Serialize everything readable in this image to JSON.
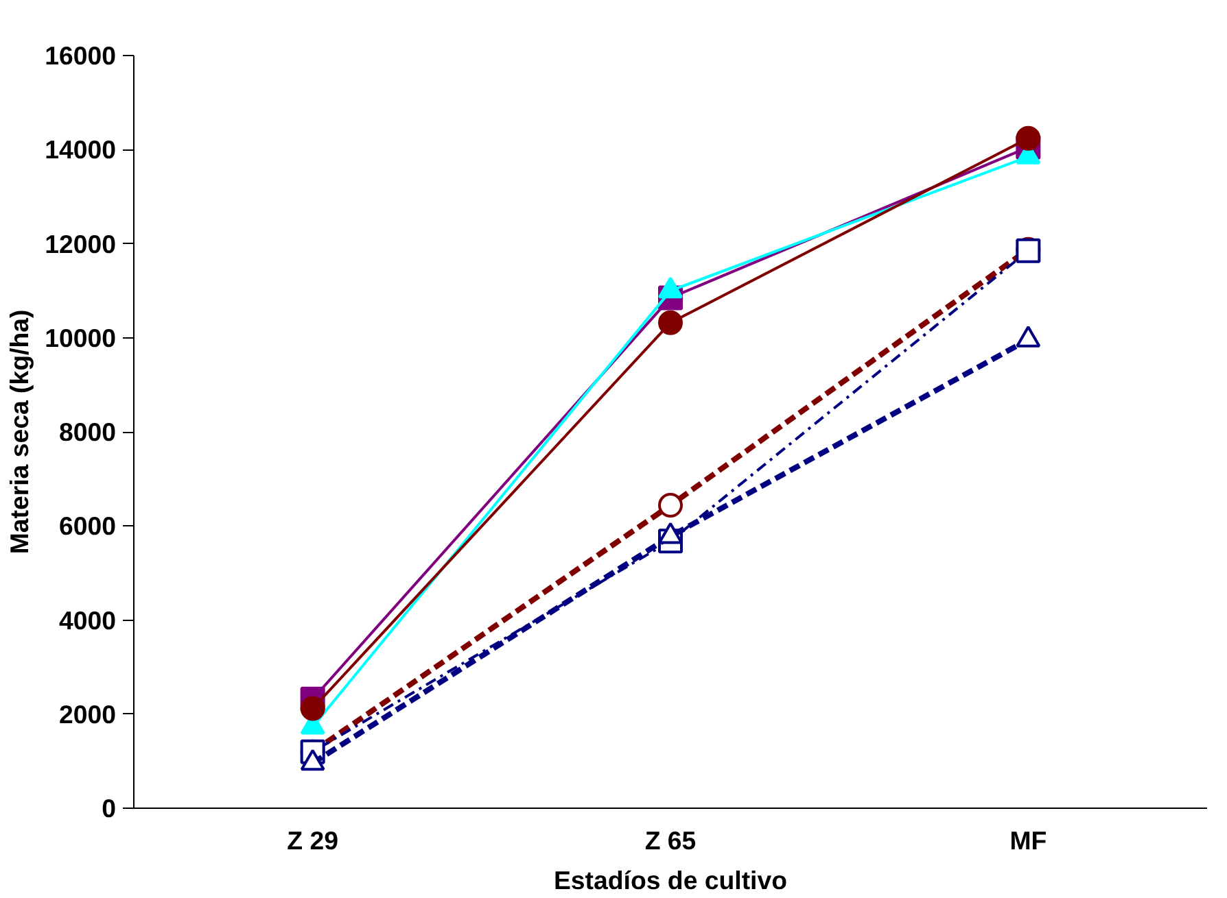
{
  "chart_data": {
    "type": "line",
    "xlabel": "Estadíos de cultivo",
    "ylabel": "Materia seca (kg/ha)",
    "categories": [
      "Z 29",
      "Z 65",
      "MF"
    ],
    "ylim": [
      0,
      16000
    ],
    "yticks": [
      0,
      2000,
      4000,
      6000,
      8000,
      10000,
      12000,
      14000,
      16000
    ],
    "series": [
      {
        "color": "#800080",
        "values": [
          2320,
          10850,
          14050
        ],
        "marker": "square",
        "line_style": "solid"
      },
      {
        "color": "#00ffff",
        "values": [
          1730,
          11000,
          13850
        ],
        "marker": "triangle",
        "line_style": "solid"
      },
      {
        "color": "#800000",
        "values": [
          2120,
          10320,
          14240
        ],
        "marker": "circle",
        "line_style": "solid"
      },
      {
        "color": "#800000",
        "values": [
          1200,
          6440,
          11880
        ],
        "marker": "circle",
        "line_style": "dashed"
      },
      {
        "color": "#000080",
        "values": [
          1200,
          5680,
          11850
        ],
        "marker": "square",
        "line_style": "dotted"
      },
      {
        "color": "#000080",
        "values": [
          960,
          5780,
          9960
        ],
        "marker": "triangle",
        "line_style": "dashed"
      }
    ]
  }
}
